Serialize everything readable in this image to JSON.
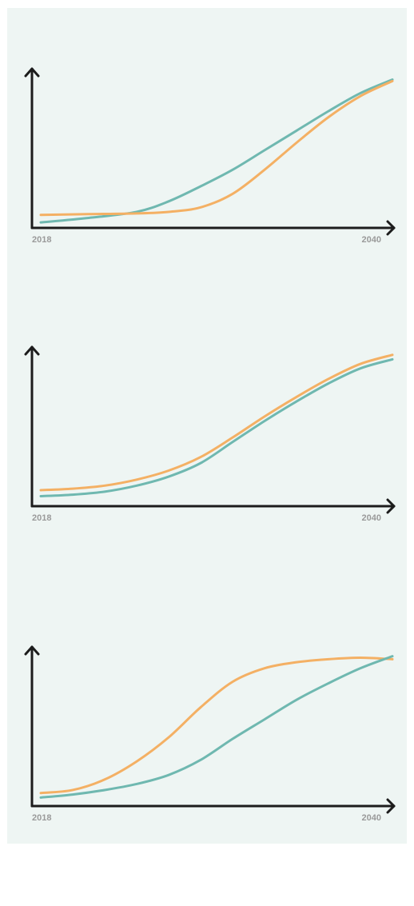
{
  "colors": {
    "background": "#eef5f3",
    "axis": "#1c1c1c",
    "teal": "#6fb8b0",
    "orange": "#f4b064",
    "tick_text": "#9a9a9a"
  },
  "chart_data": [
    {
      "type": "line",
      "x_start_label": "2018",
      "x_end_label": "2040",
      "xlim": [
        2018,
        2040
      ],
      "ylim": [
        0,
        100
      ],
      "grid": false,
      "series": [
        {
          "color": "#6fb8b0",
          "x": [
            2018,
            2021,
            2024,
            2026,
            2028,
            2030,
            2032,
            2034,
            2036,
            2038,
            2040
          ],
          "y": [
            1,
            4,
            8,
            15,
            25,
            36,
            49,
            62,
            75,
            87,
            96
          ]
        },
        {
          "color": "#f4b064",
          "x": [
            2018,
            2021,
            2024,
            2026,
            2028,
            2030,
            2032,
            2034,
            2036,
            2038,
            2040
          ],
          "y": [
            6,
            6.5,
            7,
            8,
            11,
            20,
            36,
            54,
            71,
            85,
            95
          ]
        }
      ]
    },
    {
      "type": "line",
      "x_start_label": "2018",
      "x_end_label": "2040",
      "xlim": [
        2018,
        2040
      ],
      "ylim": [
        0,
        100
      ],
      "grid": false,
      "series": [
        {
          "color": "#f4b064",
          "x": [
            2018,
            2020,
            2022,
            2024,
            2026,
            2028,
            2030,
            2032,
            2034,
            2036,
            2038,
            2040
          ],
          "y": [
            8,
            9,
            11,
            15,
            21,
            30,
            43,
            57,
            70,
            82,
            92,
            98
          ]
        },
        {
          "color": "#6fb8b0",
          "x": [
            2018,
            2020,
            2022,
            2024,
            2026,
            2028,
            2030,
            2032,
            2034,
            2036,
            2038,
            2040
          ],
          "y": [
            4,
            5,
            7,
            11,
            17,
            26,
            40,
            54,
            67,
            79,
            89,
            95
          ]
        }
      ]
    },
    {
      "type": "line",
      "x_start_label": "2018",
      "x_end_label": "2040",
      "xlim": [
        2018,
        2040
      ],
      "ylim": [
        0,
        100
      ],
      "grid": false,
      "series": [
        {
          "color": "#f4b064",
          "x": [
            2018,
            2020,
            2022,
            2024,
            2026,
            2028,
            2030,
            2032,
            2034,
            2036,
            2038,
            2040
          ],
          "y": [
            6,
            8,
            15,
            27,
            43,
            63,
            80,
            89,
            93,
            95,
            96,
            95
          ]
        },
        {
          "color": "#6fb8b0",
          "x": [
            2018,
            2020,
            2022,
            2024,
            2026,
            2028,
            2030,
            2032,
            2034,
            2036,
            2038,
            2040
          ],
          "y": [
            3,
            5,
            8,
            12,
            18,
            28,
            42,
            55,
            68,
            79,
            89,
            97
          ]
        }
      ]
    }
  ]
}
